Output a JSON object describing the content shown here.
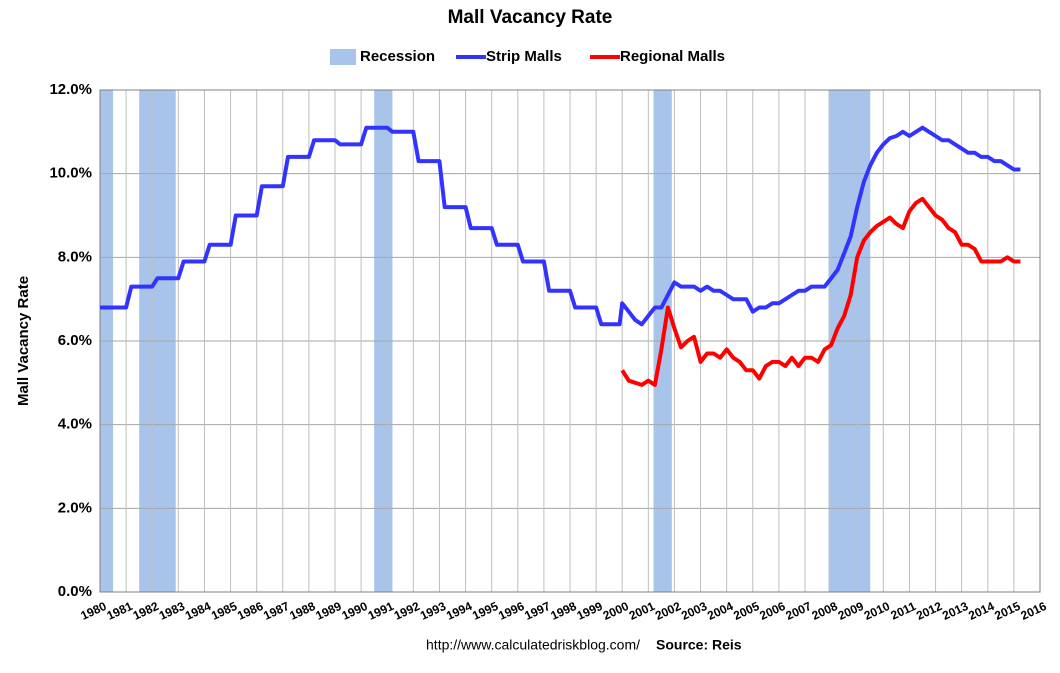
{
  "chart_data": {
    "type": "line",
    "title": "Mall Vacancy Rate",
    "ylabel": "Mall Vacancy Rate",
    "annotations": [
      "http://www.calculatedriskblog.com/",
      "Source: Reis"
    ],
    "recession_name": "Recession",
    "recession_color": "#a9c4eb",
    "recessions": [
      [
        1980.0,
        1980.5
      ],
      [
        1981.5,
        1982.9
      ],
      [
        1990.5,
        1991.2
      ],
      [
        2001.2,
        2001.9
      ],
      [
        2007.9,
        2009.5
      ]
    ],
    "xlim": [
      1980,
      2016
    ],
    "xticks": [
      1980,
      1981,
      1982,
      1983,
      1984,
      1985,
      1986,
      1987,
      1988,
      1989,
      1990,
      1991,
      1992,
      1993,
      1994,
      1995,
      1996,
      1997,
      1998,
      1999,
      2000,
      2001,
      2002,
      2003,
      2004,
      2005,
      2006,
      2007,
      2008,
      2009,
      2010,
      2011,
      2012,
      2013,
      2014,
      2015,
      2016
    ],
    "ylim": [
      0,
      12
    ],
    "yticks": [
      {
        "value": 0,
        "label": "0.0%"
      },
      {
        "value": 2,
        "label": "2.0%"
      },
      {
        "value": 4,
        "label": "4.0%"
      },
      {
        "value": 6,
        "label": "6.0%"
      },
      {
        "value": 8,
        "label": "8.0%"
      },
      {
        "value": 10,
        "label": "10.0%"
      },
      {
        "value": 12,
        "label": "12.0%"
      }
    ],
    "grid": true,
    "series": [
      {
        "name": "Strip Malls",
        "color": "#3333ff",
        "x": [
          1980,
          1981,
          1981.2,
          1982,
          1982.2,
          1983,
          1983.2,
          1984,
          1984.2,
          1985,
          1985.2,
          1986,
          1986.2,
          1987,
          1987.2,
          1988,
          1988.2,
          1989,
          1989.2,
          1990,
          1990.2,
          1991,
          1991.2,
          1992,
          1992.2,
          1993,
          1993.2,
          1994,
          1994.2,
          1995,
          1995.2,
          1996,
          1996.2,
          1997,
          1997.2,
          1998,
          1998.2,
          1999,
          1999.2,
          1999.9,
          2000,
          2000.25,
          2000.5,
          2000.75,
          2001,
          2001.25,
          2001.5,
          2001.75,
          2002,
          2002.25,
          2002.5,
          2002.75,
          2003,
          2003.25,
          2003.5,
          2003.75,
          2004,
          2004.25,
          2004.5,
          2004.75,
          2005,
          2005.25,
          2005.5,
          2005.75,
          2006,
          2006.25,
          2006.5,
          2006.75,
          2007,
          2007.25,
          2007.5,
          2007.75,
          2008,
          2008.25,
          2008.5,
          2008.75,
          2009,
          2009.25,
          2009.5,
          2009.75,
          2010,
          2010.25,
          2010.5,
          2010.75,
          2011,
          2011.25,
          2011.5,
          2011.75,
          2012,
          2012.25,
          2012.5,
          2012.75,
          2013,
          2013.25,
          2013.5,
          2013.75,
          2014,
          2014.25,
          2014.5,
          2014.75,
          2015,
          2015.25
        ],
        "values": [
          6.8,
          6.8,
          7.3,
          7.3,
          7.5,
          7.5,
          7.9,
          7.9,
          8.3,
          8.3,
          9.0,
          9.0,
          9.7,
          9.7,
          10.4,
          10.4,
          10.8,
          10.8,
          10.7,
          10.7,
          11.1,
          11.1,
          11.0,
          11.0,
          10.3,
          10.3,
          9.2,
          9.2,
          8.7,
          8.7,
          8.3,
          8.3,
          7.9,
          7.9,
          7.2,
          7.2,
          6.8,
          6.8,
          6.4,
          6.4,
          6.9,
          6.7,
          6.5,
          6.4,
          6.6,
          6.8,
          6.8,
          7.1,
          7.4,
          7.3,
          7.3,
          7.3,
          7.2,
          7.3,
          7.2,
          7.2,
          7.1,
          7.0,
          7.0,
          7.0,
          6.7,
          6.8,
          6.8,
          6.9,
          6.9,
          7.0,
          7.1,
          7.2,
          7.2,
          7.3,
          7.3,
          7.3,
          7.5,
          7.7,
          8.1,
          8.5,
          9.2,
          9.8,
          10.2,
          10.5,
          10.7,
          10.85,
          10.9,
          11.0,
          10.9,
          11.0,
          11.1,
          11.0,
          10.9,
          10.8,
          10.8,
          10.7,
          10.6,
          10.5,
          10.5,
          10.4,
          10.4,
          10.3,
          10.3,
          10.2,
          10.1,
          10.1
        ]
      },
      {
        "name": "Regional Malls",
        "color": "#ff0000",
        "x": [
          2000,
          2000.25,
          2000.5,
          2000.75,
          2001,
          2001.25,
          2001.5,
          2001.75,
          2002,
          2002.25,
          2002.5,
          2002.75,
          2003,
          2003.25,
          2003.5,
          2003.75,
          2004,
          2004.25,
          2004.5,
          2004.75,
          2005,
          2005.25,
          2005.5,
          2005.75,
          2006,
          2006.25,
          2006.5,
          2006.75,
          2007,
          2007.25,
          2007.5,
          2007.75,
          2008,
          2008.25,
          2008.5,
          2008.75,
          2009,
          2009.25,
          2009.5,
          2009.75,
          2010,
          2010.25,
          2010.5,
          2010.75,
          2011,
          2011.25,
          2011.5,
          2011.75,
          2012,
          2012.25,
          2012.5,
          2012.75,
          2013,
          2013.25,
          2013.5,
          2013.75,
          2014,
          2014.25,
          2014.5,
          2014.75,
          2015,
          2015.25
        ],
        "values": [
          5.3,
          5.05,
          5.0,
          4.95,
          5.05,
          4.95,
          5.8,
          6.8,
          6.3,
          5.85,
          6.0,
          6.1,
          5.5,
          5.7,
          5.7,
          5.6,
          5.8,
          5.6,
          5.5,
          5.3,
          5.3,
          5.1,
          5.4,
          5.5,
          5.5,
          5.4,
          5.6,
          5.4,
          5.6,
          5.6,
          5.5,
          5.8,
          5.9,
          6.3,
          6.6,
          7.1,
          8.0,
          8.4,
          8.6,
          8.75,
          8.85,
          8.95,
          8.8,
          8.7,
          9.1,
          9.3,
          9.4,
          9.2,
          9.0,
          8.9,
          8.7,
          8.6,
          8.3,
          8.3,
          8.2,
          7.9,
          7.9,
          7.9,
          7.9,
          8.0,
          7.9,
          7.9
        ]
      }
    ]
  }
}
